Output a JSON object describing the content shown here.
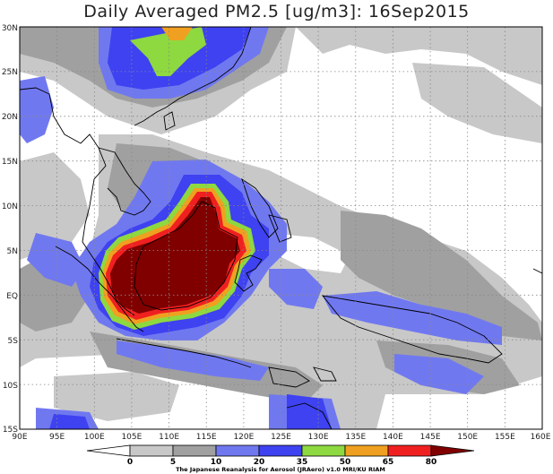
{
  "title": "Daily Averaged PM2.5 [ug/m3]: 16Sep2015",
  "map": {
    "lon_range": [
      90,
      160
    ],
    "lat_range": [
      -15,
      30
    ],
    "lat_labels": [
      "30N",
      "25N",
      "20N",
      "15N",
      "10N",
      "5N",
      "EQ",
      "5S",
      "10S",
      "15S"
    ],
    "lon_labels": [
      "90E",
      "95E",
      "100E",
      "105E",
      "110E",
      "115E",
      "120E",
      "125E",
      "130E",
      "135E",
      "140E",
      "145E",
      "150E",
      "155E",
      "160E"
    ],
    "gridlines": "dotted"
  },
  "colorbar": {
    "thresholds": [
      "0",
      "5",
      "10",
      "20",
      "35",
      "50",
      "65",
      "80"
    ],
    "colors": [
      "#ffffff",
      "#c8c8c8",
      "#a0a0a0",
      "#7078f0",
      "#3e42f0",
      "#8ed840",
      "#f0a020",
      "#f02020",
      "#800000"
    ],
    "credit": "The Japanese Reanalysis for Aerosol (JRAero) v1.0 MRI/KU RIAM"
  }
}
